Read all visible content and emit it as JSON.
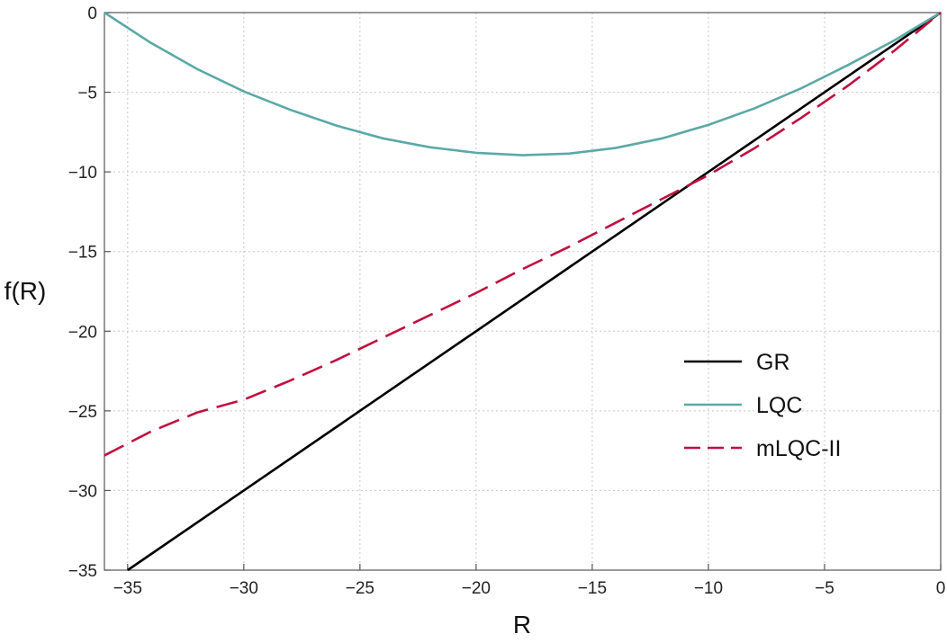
{
  "chart_data": {
    "type": "line",
    "title": "",
    "xlabel": "R",
    "ylabel": "f(R)",
    "xlim": [
      -36,
      0
    ],
    "ylim": [
      -35,
      0
    ],
    "xticks": [
      -35,
      -30,
      -25,
      -20,
      -15,
      -10,
      -5,
      0
    ],
    "yticks": [
      0,
      -5,
      -10,
      -15,
      -20,
      -25,
      -30,
      -35
    ],
    "xtick_labels": [
      "−35",
      "−30",
      "−25",
      "−20",
      "−15",
      "−10",
      "−5",
      "0"
    ],
    "ytick_labels": [
      "0",
      "−5",
      "−10",
      "−15",
      "−20",
      "−25",
      "−30",
      "−35"
    ],
    "grid": true,
    "legend_position": "bottom-right",
    "series": [
      {
        "name": "GR",
        "color": "#000000",
        "dash": "solid",
        "x": [
          -35,
          -30,
          -25,
          -20,
          -15,
          -10,
          -5,
          0
        ],
        "y": [
          -35,
          -30,
          -25,
          -20,
          -15,
          -10,
          -5,
          0
        ]
      },
      {
        "name": "LQC",
        "color": "#5aa9a6",
        "dash": "solid",
        "x": [
          -36,
          -34,
          -32,
          -30,
          -28,
          -26,
          -24,
          -22,
          -20,
          -18,
          -16,
          -14,
          -12,
          -10,
          -8,
          -6,
          -4,
          -2,
          0
        ],
        "y": [
          0,
          -1.9,
          -3.55,
          -4.95,
          -6.1,
          -7.1,
          -7.9,
          -8.45,
          -8.8,
          -8.95,
          -8.85,
          -8.5,
          -7.9,
          -7.05,
          -6.0,
          -4.75,
          -3.3,
          -1.75,
          0
        ]
      },
      {
        "name": "mLQC-II",
        "color": "#c0103f",
        "dash": "dashed",
        "x": [
          -36,
          -34,
          -32,
          -30,
          -28,
          -26,
          -24,
          -22,
          -20,
          -18,
          -16,
          -14,
          -12,
          -10,
          -8,
          -6,
          -4,
          -2,
          0
        ],
        "y": [
          -27.8,
          -26.3,
          -25.1,
          -24.3,
          -23.1,
          -21.8,
          -20.4,
          -19.0,
          -17.6,
          -16.1,
          -14.7,
          -13.2,
          -11.7,
          -10.2,
          -8.5,
          -6.6,
          -4.6,
          -2.4,
          0
        ]
      }
    ]
  }
}
